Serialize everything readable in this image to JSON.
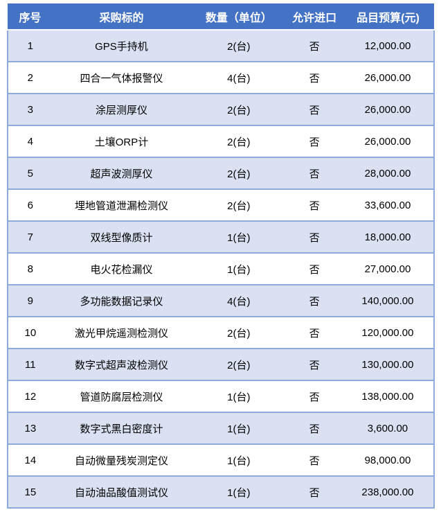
{
  "colors": {
    "header_bg": "#4472C4",
    "header_text": "#ffffff",
    "row_alt_bg": "#D9E1F2",
    "row_bg": "#ffffff",
    "border": "#8EAADB",
    "body_text": "#000000"
  },
  "table": {
    "columns": [
      "序号",
      "采购标的",
      "数量（单位）",
      "允许进口",
      "品目预算(元)"
    ],
    "rows": [
      [
        "1",
        "GPS手持机",
        "2(台)",
        "否",
        "12,000.00"
      ],
      [
        "2",
        "四合一气体报警仪",
        "4(台)",
        "否",
        "26,000.00"
      ],
      [
        "3",
        "涂层测厚仪",
        "2(台)",
        "否",
        "26,000.00"
      ],
      [
        "4",
        "土壤ORP计",
        "2(台)",
        "否",
        "26,000.00"
      ],
      [
        "5",
        "超声波测厚仪",
        "2(台)",
        "否",
        "28,000.00"
      ],
      [
        "6",
        "埋地管道泄漏检测仪",
        "2(台)",
        "否",
        "33,600.00"
      ],
      [
        "7",
        "双线型像质计",
        "1(台)",
        "否",
        "18,000.00"
      ],
      [
        "8",
        "电火花检漏仪",
        "1(台)",
        "否",
        "27,000.00"
      ],
      [
        "9",
        "多功能数据记录仪",
        "4(台)",
        "否",
        "140,000.00"
      ],
      [
        "10",
        "激光甲烷遥测检测仪",
        "2(台)",
        "否",
        "120,000.00"
      ],
      [
        "11",
        "数字式超声波检测仪",
        "2(台)",
        "否",
        "130,000.00"
      ],
      [
        "12",
        "管道防腐层检测仪",
        "1(台)",
        "否",
        "138,000.00"
      ],
      [
        "13",
        "数字式黑白密度计",
        "1(台)",
        "否",
        "3,600.00"
      ],
      [
        "14",
        "自动微量残炭测定仪",
        "1(台)",
        "否",
        "98,000.00"
      ],
      [
        "15",
        "自动油品酸值测试仪",
        "1(台)",
        "否",
        "238,000.00"
      ]
    ]
  }
}
